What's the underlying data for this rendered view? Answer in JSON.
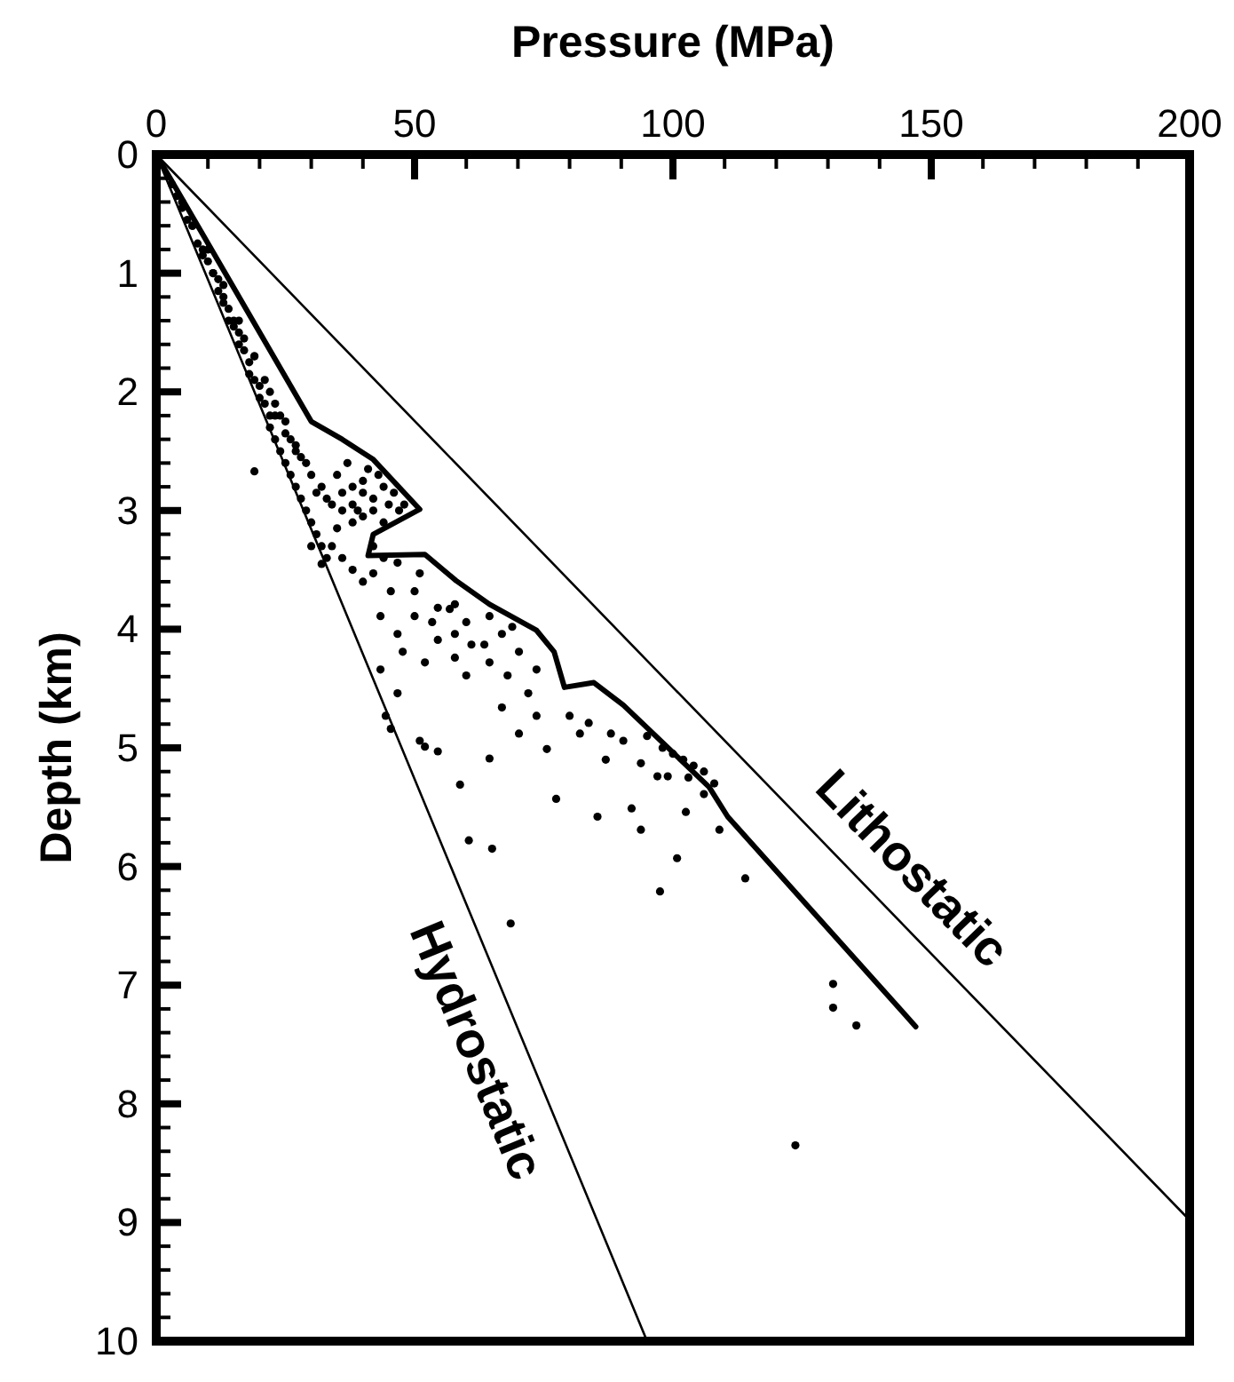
{
  "chart_data": {
    "type": "scatter",
    "xlabel": "Pressure (MPa)",
    "ylabel": "Depth (km)",
    "xlim": [
      0,
      200
    ],
    "ylim": [
      10,
      0
    ],
    "xticks": [
      0,
      {
        "value": 10,
        "label": null
      },
      {
        "value": 20,
        "label": null
      },
      {
        "value": 30,
        "label": null
      },
      {
        "value": 40,
        "label": null
      },
      50,
      {
        "value": 60,
        "label": null
      },
      {
        "value": 70,
        "label": null
      },
      {
        "value": 80,
        "label": null
      },
      {
        "value": 90,
        "label": null
      },
      100,
      {
        "value": 110,
        "label": null
      },
      {
        "value": 120,
        "label": null
      },
      {
        "value": 130,
        "label": null
      },
      {
        "value": 140,
        "label": null
      },
      150,
      {
        "value": 160,
        "label": null
      },
      {
        "value": 170,
        "label": null
      },
      {
        "value": 180,
        "label": null
      },
      {
        "value": 190,
        "label": null
      },
      200
    ],
    "yticks": [
      0,
      {
        "value": 0.2,
        "label": null
      },
      {
        "value": 0.4,
        "label": null
      },
      {
        "value": 0.6,
        "label": null
      },
      {
        "value": 0.8,
        "label": null
      },
      1,
      {
        "value": 1.2,
        "label": null
      },
      {
        "value": 1.4,
        "label": null
      },
      {
        "value": 1.6,
        "label": null
      },
      {
        "value": 1.8,
        "label": null
      },
      2,
      {
        "value": 2.2,
        "label": null
      },
      {
        "value": 2.4,
        "label": null
      },
      {
        "value": 2.6,
        "label": null
      },
      {
        "value": 2.8,
        "label": null
      },
      3,
      {
        "value": 3.2,
        "label": null
      },
      {
        "value": 3.4,
        "label": null
      },
      {
        "value": 3.6,
        "label": null
      },
      {
        "value": 3.8,
        "label": null
      },
      4,
      {
        "value": 4.2,
        "label": null
      },
      {
        "value": 4.4,
        "label": null
      },
      {
        "value": 4.6,
        "label": null
      },
      {
        "value": 4.8,
        "label": null
      },
      5,
      {
        "value": 5.2,
        "label": null
      },
      {
        "value": 5.4,
        "label": null
      },
      {
        "value": 5.6,
        "label": null
      },
      {
        "value": 5.8,
        "label": null
      },
      6,
      {
        "value": 6.2,
        "label": null
      },
      {
        "value": 6.4,
        "label": null
      },
      {
        "value": 6.6,
        "label": null
      },
      {
        "value": 6.8,
        "label": null
      },
      7,
      {
        "value": 7.2,
        "label": null
      },
      {
        "value": 7.4,
        "label": null
      },
      {
        "value": 7.6,
        "label": null
      },
      {
        "value": 7.8,
        "label": null
      },
      8,
      {
        "value": 8.2,
        "label": null
      },
      {
        "value": 8.4,
        "label": null
      },
      {
        "value": 8.6,
        "label": null
      },
      {
        "value": 8.8,
        "label": null
      },
      9,
      {
        "value": 9.2,
        "label": null
      },
      {
        "value": 9.4,
        "label": null
      },
      {
        "value": 9.6,
        "label": null
      },
      {
        "value": 9.8,
        "label": null
      },
      10
    ],
    "series": [
      {
        "type": "line",
        "name": "Hydrostatic",
        "color": "#000000",
        "x": [
          0,
          95
        ],
        "values": [
          0,
          10
        ]
      },
      {
        "type": "line",
        "name": "Lithostatic",
        "color": "#000000",
        "x": [
          0,
          200
        ],
        "values": [
          0,
          8.98
        ]
      },
      {
        "type": "line",
        "color": "#000000",
        "x": [
          0.7,
          30,
          36,
          42,
          51,
          42,
          41,
          52,
          58,
          64.5,
          73.6,
          77,
          79,
          84.7,
          90.4,
          107,
          110.6,
          147
        ],
        "values": [
          0.05,
          2.25,
          2.4,
          2.57,
          2.99,
          3.2,
          3.38,
          3.37,
          3.59,
          3.79,
          4.01,
          4.19,
          4.49,
          4.45,
          4.64,
          5.33,
          5.58,
          7.35
        ]
      },
      {
        "marker": "circle",
        "color": "#000000",
        "x": [
          5,
          7,
          9,
          11,
          13,
          15,
          17,
          19,
          21,
          23,
          25,
          27,
          29,
          31,
          28,
          30,
          32,
          34,
          36,
          38,
          40,
          42,
          44,
          46,
          48,
          37,
          41,
          39,
          35,
          34,
          30,
          32,
          36,
          27,
          25,
          23,
          38,
          40,
          42,
          44,
          3,
          4,
          5,
          6,
          7,
          8,
          9,
          10,
          11,
          12,
          12,
          13,
          14,
          14,
          15,
          16,
          16,
          17,
          18,
          18,
          19,
          20,
          20,
          21,
          22,
          22,
          23,
          24,
          25,
          26,
          27,
          28,
          29,
          30,
          31,
          32,
          33,
          10,
          13,
          16,
          19,
          22,
          24,
          26,
          35,
          38,
          40,
          42,
          45,
          47,
          40,
          36,
          43,
          33,
          38,
          44,
          19,
          50,
          51,
          54.5,
          56.8,
          60,
          61,
          66.9,
          70.2,
          73.6,
          75.6,
          77.4,
          58.8,
          60.5,
          65,
          68.6,
          64.5,
          82,
          87,
          85.4,
          92,
          93.8,
          100.8,
          97.5,
          93.8,
          99,
          102.5,
          106,
          109,
          46.7,
          44.4,
          51,
          54.5,
          43.4,
          47.7,
          52,
          57.8,
          54.5,
          60,
          64.5,
          68,
          72,
          80,
          83.7,
          88,
          90.4,
          97,
          43.4,
          46.7,
          50,
          53.4,
          57.8,
          63.5,
          66.9,
          70.2,
          73.6,
          45.4,
          42,
          46.7,
          57.8,
          64.5,
          68.9,
          45.4,
          52,
          114,
          131,
          131,
          135.5,
          123.7,
          95,
          98,
          100,
          102,
          104,
          106,
          103,
          108
        ],
        "values": [
          0.4,
          0.6,
          0.85,
          1.0,
          1.25,
          1.4,
          1.55,
          1.7,
          1.9,
          2.1,
          2.25,
          2.45,
          2.6,
          2.85,
          2.55,
          2.7,
          2.8,
          2.95,
          2.85,
          2.95,
          2.85,
          3.0,
          2.8,
          2.85,
          2.95,
          2.6,
          2.65,
          3.0,
          3.15,
          3.3,
          3.3,
          3.45,
          3.4,
          2.5,
          2.35,
          2.2,
          3.5,
          3.6,
          3.3,
          3.4,
          0.25,
          0.35,
          0.45,
          0.55,
          0.6,
          0.75,
          0.8,
          0.9,
          1.0,
          1.05,
          1.15,
          1.2,
          1.3,
          1.4,
          1.45,
          1.5,
          1.6,
          1.65,
          1.75,
          1.85,
          1.9,
          1.95,
          2.05,
          2.1,
          2.2,
          2.3,
          2.4,
          2.5,
          2.6,
          2.7,
          2.8,
          2.9,
          3.0,
          3.1,
          3.2,
          3.3,
          3.4,
          0.8,
          1.1,
          1.4,
          1.7,
          2.0,
          2.2,
          2.4,
          2.7,
          2.8,
          2.75,
          2.9,
          2.95,
          3.0,
          3.05,
          3.0,
          2.7,
          2.9,
          3.1,
          3.1,
          2.67,
          3.68,
          3.53,
          3.82,
          3.83,
          3.94,
          4.13,
          4.66,
          4.88,
          4.73,
          5.01,
          5.43,
          5.31,
          5.78,
          5.85,
          6.48,
          5.09,
          4.88,
          5.1,
          5.58,
          5.51,
          5.69,
          5.93,
          6.21,
          5.13,
          5.24,
          5.54,
          5.39,
          5.69,
          4.54,
          4.73,
          4.94,
          5.03,
          4.34,
          4.19,
          4.28,
          4.24,
          4.09,
          4.39,
          4.28,
          4.39,
          4.54,
          4.73,
          4.79,
          4.88,
          4.94,
          5.24,
          3.89,
          4.04,
          3.89,
          3.94,
          4.04,
          4.13,
          4.04,
          4.19,
          4.34,
          3.68,
          3.53,
          3.44,
          3.79,
          3.89,
          3.98,
          4.84,
          4.99,
          6.1,
          6.99,
          7.19,
          7.34,
          8.35,
          4.9,
          5.0,
          5.05,
          5.1,
          5.15,
          5.2,
          5.25,
          5.3
        ]
      }
    ]
  }
}
